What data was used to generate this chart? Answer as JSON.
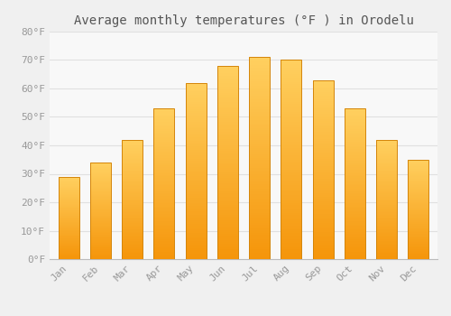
{
  "title": "Average monthly temperatures (°F ) in Orodelu",
  "months": [
    "Jan",
    "Feb",
    "Mar",
    "Apr",
    "May",
    "Jun",
    "Jul",
    "Aug",
    "Sep",
    "Oct",
    "Nov",
    "Dec"
  ],
  "values": [
    29,
    34,
    42,
    53,
    62,
    68,
    71,
    70,
    63,
    53,
    42,
    35
  ],
  "bar_color_center": "#FFB833",
  "bar_color_bottom": "#F5950A",
  "bar_color_top": "#FFD060",
  "bar_edge_color": "#D4850A",
  "ylim": [
    0,
    80
  ],
  "yticks": [
    0,
    10,
    20,
    30,
    40,
    50,
    60,
    70,
    80
  ],
  "background_color": "#f0f0f0",
  "plot_bg_color": "#f8f8f8",
  "grid_color": "#e0e0e0",
  "title_fontsize": 10,
  "tick_fontsize": 8,
  "tick_color": "#999999",
  "title_color": "#555555"
}
